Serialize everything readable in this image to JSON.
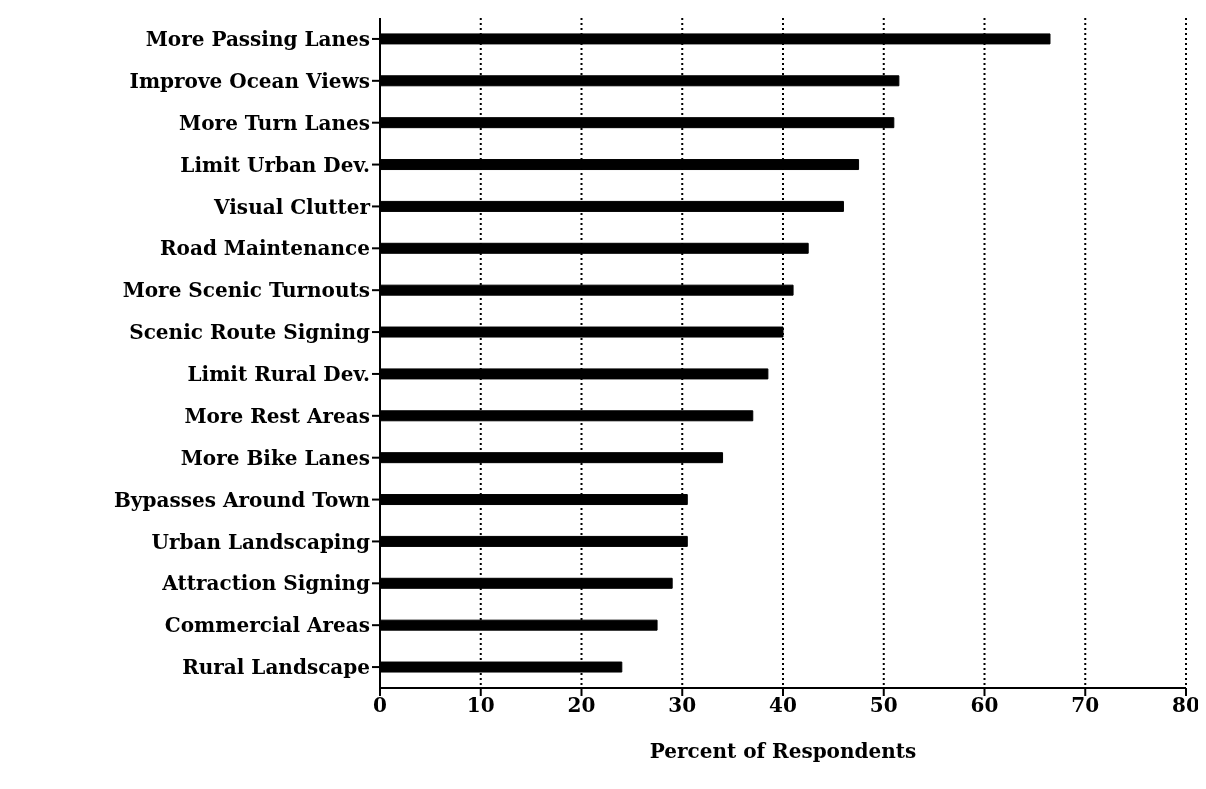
{
  "chart_data": {
    "type": "bar",
    "orientation": "horizontal",
    "xlabel": "Percent of Respondents",
    "categories": [
      "More Passing Lanes",
      "Improve Ocean Views",
      "More Turn Lanes",
      "Limit Urban Dev.",
      "Visual Clutter",
      "Road Maintenance",
      "More Scenic Turnouts",
      "Scenic Route Signing",
      "Limit Rural Dev.",
      "More Rest Areas",
      "More Bike Lanes",
      "Bypasses Around Town",
      "Urban Landscaping",
      "Attraction Signing",
      "Commercial Areas",
      "Rural Landscape"
    ],
    "values": [
      66.5,
      51.5,
      51,
      47.5,
      46,
      42.5,
      41,
      40,
      38.5,
      37,
      34,
      30.5,
      30.5,
      29,
      27.5,
      24
    ],
    "color": "#000000",
    "xlim": [
      0,
      80
    ],
    "xticks": [
      0,
      10,
      20,
      30,
      40,
      50,
      60,
      70,
      80
    ],
    "grid": "x"
  }
}
